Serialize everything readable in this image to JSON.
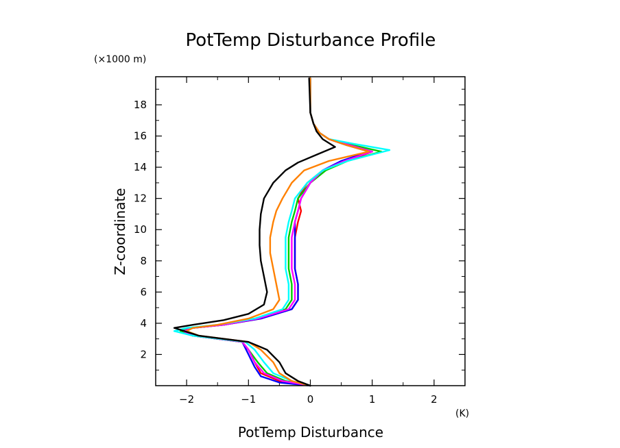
{
  "chart_data": {
    "type": "line",
    "title": "PotTemp Disturbance Profile",
    "xlabel": "PotTemp Disturbance",
    "ylabel": "Z-coordinate",
    "x_unit": "(K)",
    "y_unit": "(×1000 m)",
    "xlim": [
      -2.5,
      2.5
    ],
    "ylim": [
      0,
      19.8
    ],
    "x_ticks": [
      -2,
      -1,
      0,
      1,
      2
    ],
    "x_tick_labels": [
      "−2",
      "−1",
      "0",
      "1",
      "2"
    ],
    "y_ticks": [
      2,
      4,
      6,
      8,
      10,
      12,
      14,
      16,
      18
    ],
    "y_tick_labels": [
      "2",
      "4",
      "6",
      "8",
      "10",
      "12",
      "14",
      "16",
      "18"
    ],
    "grid": false,
    "series": [
      {
        "color": "#ff0000",
        "points": [
          [
            0.0,
            0
          ],
          [
            -0.5,
            0.3
          ],
          [
            -0.8,
            0.8
          ],
          [
            -0.9,
            1.5
          ],
          [
            -1.0,
            2.3
          ],
          [
            -1.1,
            2.8
          ],
          [
            -1.9,
            3.2
          ],
          [
            -2.05,
            3.5
          ],
          [
            -1.9,
            3.7
          ],
          [
            -1.4,
            3.9
          ],
          [
            -0.8,
            4.3
          ],
          [
            -0.3,
            4.9
          ],
          [
            -0.2,
            5.5
          ],
          [
            -0.2,
            6.5
          ],
          [
            -0.25,
            7.5
          ],
          [
            -0.25,
            8.5
          ],
          [
            -0.25,
            9.5
          ],
          [
            -0.2,
            10.5
          ],
          [
            -0.15,
            11.2
          ],
          [
            -0.2,
            12.0
          ],
          [
            -0.05,
            13.0
          ],
          [
            0.2,
            13.8
          ],
          [
            0.6,
            14.4
          ],
          [
            1.0,
            15.0
          ],
          [
            0.6,
            15.4
          ],
          [
            0.3,
            15.8
          ],
          [
            0.15,
            16.2
          ],
          [
            0.05,
            16.8
          ],
          [
            0.0,
            17.5
          ],
          [
            0.0,
            19.7
          ]
        ]
      },
      {
        "color": "#0000ff",
        "points": [
          [
            0.0,
            0
          ],
          [
            -0.5,
            0.2
          ],
          [
            -0.8,
            0.6
          ],
          [
            -0.9,
            1.2
          ],
          [
            -1.0,
            2.0
          ],
          [
            -1.1,
            2.8
          ],
          [
            -1.9,
            3.2
          ],
          [
            -2.05,
            3.5
          ],
          [
            -1.9,
            3.7
          ],
          [
            -1.4,
            3.9
          ],
          [
            -0.8,
            4.3
          ],
          [
            -0.3,
            4.9
          ],
          [
            -0.2,
            5.5
          ],
          [
            -0.2,
            6.5
          ],
          [
            -0.25,
            7.5
          ],
          [
            -0.25,
            8.5
          ],
          [
            -0.25,
            9.5
          ],
          [
            -0.25,
            10.5
          ],
          [
            -0.2,
            11.2
          ],
          [
            -0.15,
            12.0
          ],
          [
            0.0,
            13.0
          ],
          [
            0.2,
            13.8
          ],
          [
            0.5,
            14.4
          ],
          [
            0.95,
            15.0
          ],
          [
            0.6,
            15.4
          ],
          [
            0.3,
            15.8
          ],
          [
            0.15,
            16.2
          ],
          [
            0.05,
            16.8
          ],
          [
            0.0,
            17.5
          ],
          [
            0.0,
            19.7
          ]
        ]
      },
      {
        "color": "#00cc00",
        "points": [
          [
            0.0,
            0
          ],
          [
            -0.4,
            0.3
          ],
          [
            -0.7,
            0.8
          ],
          [
            -0.85,
            1.5
          ],
          [
            -1.0,
            2.3
          ],
          [
            -1.1,
            2.8
          ],
          [
            -1.9,
            3.2
          ],
          [
            -2.1,
            3.5
          ],
          [
            -1.9,
            3.7
          ],
          [
            -1.4,
            3.9
          ],
          [
            -0.9,
            4.3
          ],
          [
            -0.4,
            4.9
          ],
          [
            -0.3,
            5.5
          ],
          [
            -0.3,
            6.5
          ],
          [
            -0.35,
            7.5
          ],
          [
            -0.35,
            8.5
          ],
          [
            -0.35,
            9.5
          ],
          [
            -0.3,
            10.5
          ],
          [
            -0.25,
            11.2
          ],
          [
            -0.2,
            12.0
          ],
          [
            0.0,
            13.0
          ],
          [
            0.25,
            13.8
          ],
          [
            0.6,
            14.4
          ],
          [
            1.15,
            15.0
          ],
          [
            0.7,
            15.4
          ],
          [
            0.3,
            15.8
          ],
          [
            0.15,
            16.2
          ],
          [
            0.05,
            16.8
          ],
          [
            0.0,
            17.5
          ],
          [
            0.0,
            19.7
          ]
        ]
      },
      {
        "color": "#ff00ff",
        "points": [
          [
            0.0,
            0
          ],
          [
            -0.45,
            0.3
          ],
          [
            -0.75,
            0.8
          ],
          [
            -0.9,
            1.5
          ],
          [
            -1.0,
            2.3
          ],
          [
            -1.1,
            2.8
          ],
          [
            -1.9,
            3.2
          ],
          [
            -2.05,
            3.5
          ],
          [
            -1.9,
            3.7
          ],
          [
            -1.4,
            3.9
          ],
          [
            -0.85,
            4.3
          ],
          [
            -0.35,
            4.9
          ],
          [
            -0.25,
            5.5
          ],
          [
            -0.25,
            6.5
          ],
          [
            -0.3,
            7.5
          ],
          [
            -0.3,
            8.5
          ],
          [
            -0.3,
            9.5
          ],
          [
            -0.25,
            10.5
          ],
          [
            -0.2,
            11.2
          ],
          [
            -0.15,
            12.0
          ],
          [
            0.0,
            13.0
          ],
          [
            0.2,
            13.8
          ],
          [
            0.55,
            14.4
          ],
          [
            1.0,
            15.0
          ],
          [
            0.65,
            15.4
          ],
          [
            0.3,
            15.8
          ],
          [
            0.15,
            16.2
          ],
          [
            0.05,
            16.8
          ],
          [
            0.0,
            17.5
          ],
          [
            0.0,
            19.7
          ]
        ]
      },
      {
        "color": "#00ffff",
        "points": [
          [
            0.0,
            0
          ],
          [
            -0.3,
            0.3
          ],
          [
            -0.6,
            0.8
          ],
          [
            -0.75,
            1.5
          ],
          [
            -0.9,
            2.3
          ],
          [
            -1.05,
            2.8
          ],
          [
            -1.9,
            3.2
          ],
          [
            -2.2,
            3.5
          ],
          [
            -2.0,
            3.7
          ],
          [
            -1.5,
            3.9
          ],
          [
            -0.9,
            4.3
          ],
          [
            -0.45,
            4.9
          ],
          [
            -0.35,
            5.5
          ],
          [
            -0.35,
            6.5
          ],
          [
            -0.4,
            7.5
          ],
          [
            -0.4,
            8.5
          ],
          [
            -0.4,
            9.5
          ],
          [
            -0.35,
            10.5
          ],
          [
            -0.3,
            11.2
          ],
          [
            -0.25,
            12.0
          ],
          [
            -0.05,
            13.0
          ],
          [
            0.2,
            13.8
          ],
          [
            0.6,
            14.4
          ],
          [
            1.28,
            15.1
          ],
          [
            0.7,
            15.5
          ],
          [
            0.3,
            15.8
          ],
          [
            0.15,
            16.2
          ],
          [
            0.05,
            16.8
          ],
          [
            0.0,
            17.5
          ],
          [
            0.0,
            19.7
          ]
        ]
      },
      {
        "color": "#ff8000",
        "points": [
          [
            0.0,
            0
          ],
          [
            -0.3,
            0.3
          ],
          [
            -0.5,
            0.8
          ],
          [
            -0.6,
            1.5
          ],
          [
            -0.8,
            2.3
          ],
          [
            -1.0,
            2.8
          ],
          [
            -1.8,
            3.2
          ],
          [
            -2.0,
            3.5
          ],
          [
            -1.9,
            3.7
          ],
          [
            -1.5,
            3.9
          ],
          [
            -1.0,
            4.3
          ],
          [
            -0.6,
            4.9
          ],
          [
            -0.5,
            5.5
          ],
          [
            -0.55,
            6.5
          ],
          [
            -0.6,
            7.5
          ],
          [
            -0.65,
            8.5
          ],
          [
            -0.65,
            9.5
          ],
          [
            -0.6,
            10.5
          ],
          [
            -0.55,
            11.2
          ],
          [
            -0.45,
            12.0
          ],
          [
            -0.3,
            13.0
          ],
          [
            -0.1,
            13.8
          ],
          [
            0.3,
            14.4
          ],
          [
            0.95,
            15.0
          ],
          [
            0.6,
            15.4
          ],
          [
            0.3,
            15.8
          ],
          [
            0.15,
            16.2
          ],
          [
            0.05,
            16.8
          ],
          [
            0.0,
            17.5
          ],
          [
            0.0,
            19.7
          ]
        ]
      },
      {
        "color": "#000000",
        "points": [
          [
            0.0,
            0
          ],
          [
            -0.2,
            0.3
          ],
          [
            -0.4,
            0.8
          ],
          [
            -0.5,
            1.5
          ],
          [
            -0.7,
            2.3
          ],
          [
            -1.0,
            2.8
          ],
          [
            -1.8,
            3.2
          ],
          [
            -2.2,
            3.7
          ],
          [
            -1.9,
            3.9
          ],
          [
            -1.4,
            4.2
          ],
          [
            -1.0,
            4.6
          ],
          [
            -0.75,
            5.2
          ],
          [
            -0.7,
            6.0
          ],
          [
            -0.75,
            7.0
          ],
          [
            -0.8,
            8.0
          ],
          [
            -0.82,
            9.0
          ],
          [
            -0.82,
            10.0
          ],
          [
            -0.8,
            11.0
          ],
          [
            -0.75,
            12.0
          ],
          [
            -0.6,
            13.0
          ],
          [
            -0.4,
            13.8
          ],
          [
            -0.2,
            14.3
          ],
          [
            0.1,
            14.8
          ],
          [
            0.4,
            15.3
          ],
          [
            0.2,
            15.8
          ],
          [
            0.1,
            16.3
          ],
          [
            0.05,
            16.8
          ],
          [
            0.0,
            17.5
          ],
          [
            -0.02,
            19.7
          ]
        ]
      }
    ]
  }
}
